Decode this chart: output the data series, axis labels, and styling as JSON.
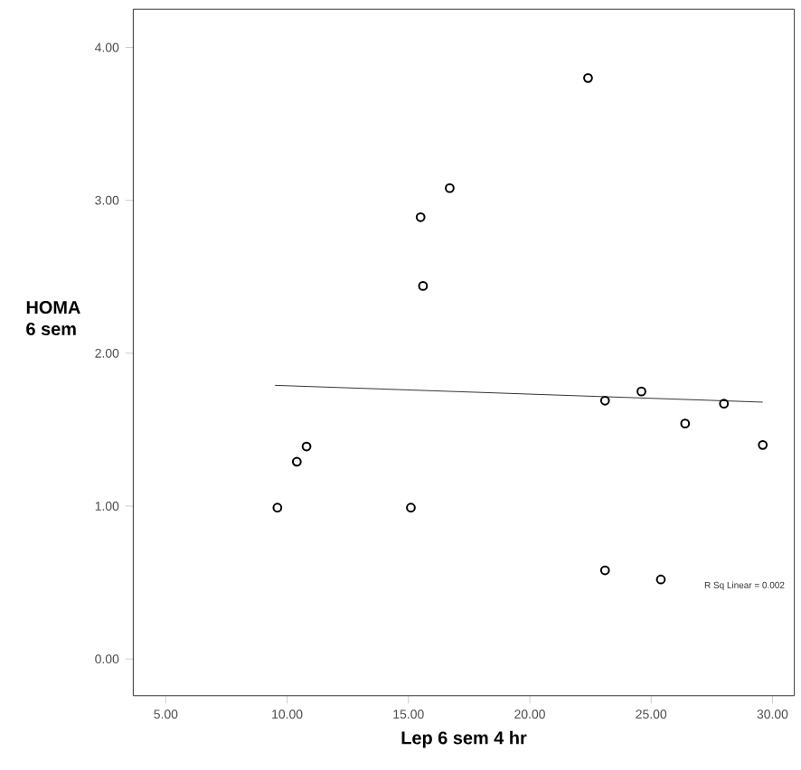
{
  "chart_data": {
    "type": "scatter",
    "xlabel": "Lep 6 sem 4 hr",
    "ylabel": "HOMA\n6 sem",
    "xlim": [
      3.66,
      30.9
    ],
    "ylim": [
      -0.24,
      4.25
    ],
    "xticks": [
      {
        "value": 5,
        "label": "5.00"
      },
      {
        "value": 10,
        "label": "10.00"
      },
      {
        "value": 15,
        "label": "15.00"
      },
      {
        "value": 20,
        "label": "20.00"
      },
      {
        "value": 25,
        "label": "25.00"
      },
      {
        "value": 30,
        "label": "30.00"
      }
    ],
    "yticks": [
      {
        "value": 0,
        "label": "0.00"
      },
      {
        "value": 1,
        "label": "1.00"
      },
      {
        "value": 2,
        "label": "2.00"
      },
      {
        "value": 3,
        "label": "3.00"
      },
      {
        "value": 4,
        "label": "4.00"
      }
    ],
    "series": [
      {
        "marker": "circle",
        "color": "#000000",
        "x": [
          9.6,
          10.4,
          10.8,
          15.1,
          15.5,
          15.6,
          16.7,
          22.4,
          23.1,
          24.6,
          23.1,
          25.4,
          26.4,
          28.0,
          29.6
        ],
        "values": [
          0.99,
          1.29,
          1.39,
          0.99,
          2.89,
          2.44,
          3.08,
          3.8,
          1.69,
          1.75,
          0.58,
          0.52,
          1.54,
          1.67,
          1.4
        ]
      },
      {
        "type": "line",
        "color": "#000000",
        "x": [
          9.5,
          29.6
        ],
        "values": [
          1.79,
          1.68
        ]
      }
    ],
    "annotations": [
      "R Sq Linear = 0.002"
    ]
  }
}
